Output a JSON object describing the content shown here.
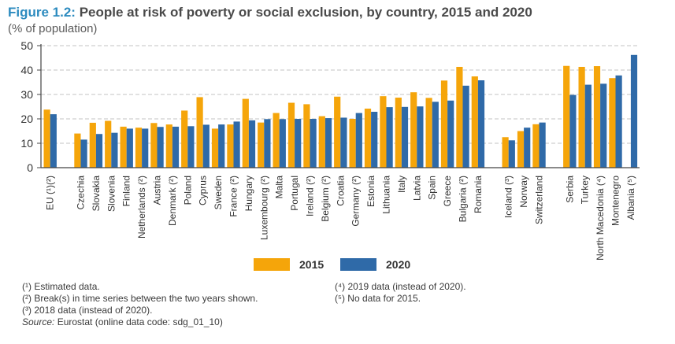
{
  "title": {
    "figure_label": "Figure 1.2:",
    "text": "People at risk of poverty or social exclusion, by country, 2015 and 2020",
    "subtitle": "(% of population)"
  },
  "colors": {
    "s2015": "#f5a50a",
    "s2020": "#2f6aa8",
    "grid": "#b0b0b0",
    "axis": "#444444",
    "text": "#333333"
  },
  "legend": {
    "s2015": "2015",
    "s2020": "2020"
  },
  "notes_left": [
    "(¹) Estimated data.",
    "(²) Break(s) in time series between the two years shown.",
    "(³) 2018 data (instead of 2020)."
  ],
  "notes_right": [
    "(⁴) 2019 data (instead of 2020).",
    "(⁵) No data for 2015."
  ],
  "source": {
    "label": "Source:",
    "text": "Eurostat (online data code: sdg_01_10)"
  },
  "chart_data": {
    "type": "bar",
    "ylim": [
      0,
      50
    ],
    "yticks": [
      0,
      10,
      20,
      30,
      40,
      50
    ],
    "grid": true,
    "legend_position": "bottom",
    "groups": [
      [
        "EU (¹)(²)"
      ],
      [
        "Czechia",
        "Slovakia",
        "Slovenia",
        "Finland",
        "Netherlands (²)",
        "Austria",
        "Denmark (²)",
        "Poland",
        "Cyprus",
        "Sweden",
        "France (²)",
        "Hungary",
        "Luxembourg (²)",
        "Malta",
        "Portugal",
        "Ireland (²)",
        "Belgium (²)",
        "Croatia",
        "Germany (²)",
        "Estonia",
        "Lithuania",
        "Italy",
        "Latvia",
        "Spain",
        "Greece",
        "Bulgaria (²)",
        "Romania"
      ],
      [
        "Iceland (³)",
        "Norway",
        "Switzerland"
      ],
      [
        "Serbia",
        "Turkey",
        "North Macedonia (⁴)",
        "Montenegro",
        "Albania (⁵)"
      ]
    ],
    "categories": [
      "EU (¹)(²)",
      "Czechia",
      "Slovakia",
      "Slovenia",
      "Finland",
      "Netherlands (²)",
      "Austria",
      "Denmark (²)",
      "Poland",
      "Cyprus",
      "Sweden",
      "France (²)",
      "Hungary",
      "Luxembourg (²)",
      "Malta",
      "Portugal",
      "Ireland (²)",
      "Belgium (²)",
      "Croatia",
      "Germany (²)",
      "Estonia",
      "Lithuania",
      "Italy",
      "Latvia",
      "Spain",
      "Greece",
      "Bulgaria (²)",
      "Romania",
      "Iceland (³)",
      "Norway",
      "Switzerland",
      "Serbia",
      "Turkey",
      "North Macedonia (⁴)",
      "Montenegro",
      "Albania (⁵)"
    ],
    "series": [
      {
        "name": "2015",
        "values": [
          23.8,
          14.0,
          18.4,
          19.2,
          16.8,
          16.4,
          18.3,
          17.7,
          23.4,
          28.9,
          16.0,
          17.7,
          28.2,
          18.5,
          22.4,
          26.6,
          26.0,
          21.1,
          29.1,
          20.0,
          24.2,
          29.3,
          28.7,
          30.9,
          28.6,
          35.7,
          41.3,
          37.4,
          12.5,
          15.0,
          17.8,
          41.7,
          41.3,
          41.6,
          36.7,
          null
        ]
      },
      {
        "name": "2020",
        "values": [
          21.9,
          11.5,
          13.8,
          14.3,
          16.0,
          16.0,
          16.7,
          16.8,
          17.0,
          17.6,
          17.7,
          18.9,
          19.4,
          19.9,
          19.9,
          20.0,
          20.0,
          20.3,
          20.5,
          22.4,
          22.9,
          24.8,
          24.9,
          25.1,
          27.0,
          27.5,
          33.6,
          35.8,
          11.2,
          16.4,
          18.5,
          29.8,
          34.0,
          34.4,
          37.8,
          46.2
        ]
      }
    ]
  }
}
